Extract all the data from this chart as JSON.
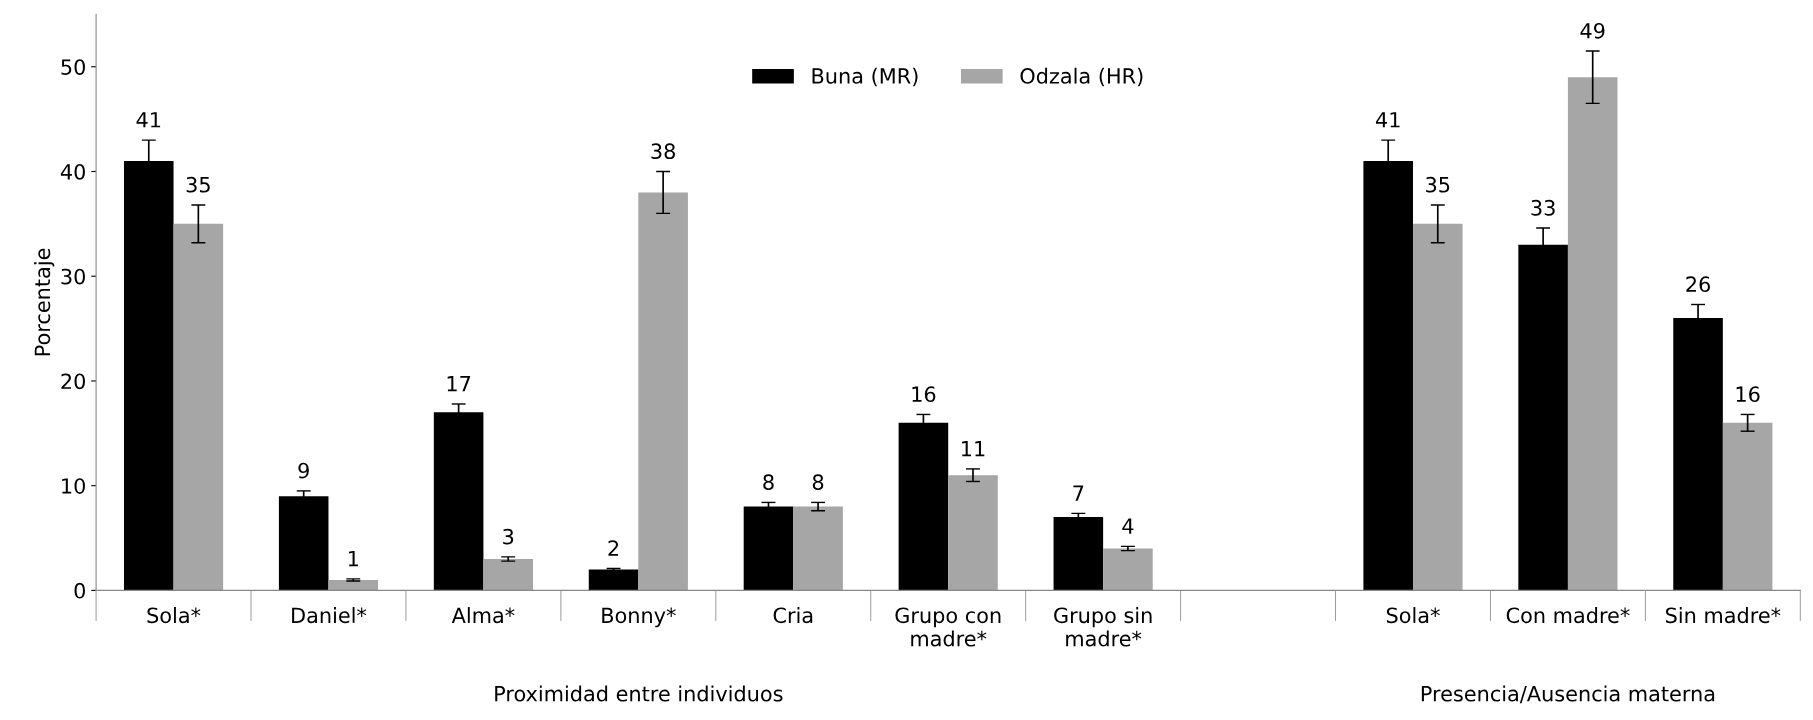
{
  "chart_data": {
    "type": "bar",
    "ylabel": "Porcentaje",
    "categories": [
      "Sola*",
      "Daniel*",
      "Alma*",
      "Bonny*",
      "Cria",
      "Grupo con\nmadre*",
      "Grupo sin\nmadre*",
      null,
      "Sola*",
      "Con madre*",
      "Sin madre*"
    ],
    "series": [
      {
        "name": "Buna (MR)",
        "color": "#000000",
        "values": [
          41,
          9,
          17,
          2,
          8,
          16,
          7,
          null,
          41,
          33,
          26
        ],
        "errors": [
          2,
          0.5,
          0.8,
          0.1,
          0.4,
          0.8,
          0.35,
          null,
          2,
          1.6,
          1.3
        ]
      },
      {
        "name": "Odzala (HR)",
        "color": "#a6a6a6",
        "values": [
          35,
          1,
          3,
          38,
          8,
          11,
          4,
          null,
          35,
          49,
          16
        ],
        "errors": [
          1.8,
          0.1,
          0.2,
          2,
          0.4,
          0.6,
          0.2,
          null,
          1.8,
          2.5,
          0.8
        ]
      }
    ],
    "annotations": [
      "Proximidad entre individuos",
      "Presencia/Ausencia materna"
    ],
    "ylim": [
      0,
      55
    ],
    "yticks": [
      0,
      10,
      20,
      30,
      40,
      50
    ],
    "data_labels": true,
    "grid": false,
    "legend": "top"
  }
}
